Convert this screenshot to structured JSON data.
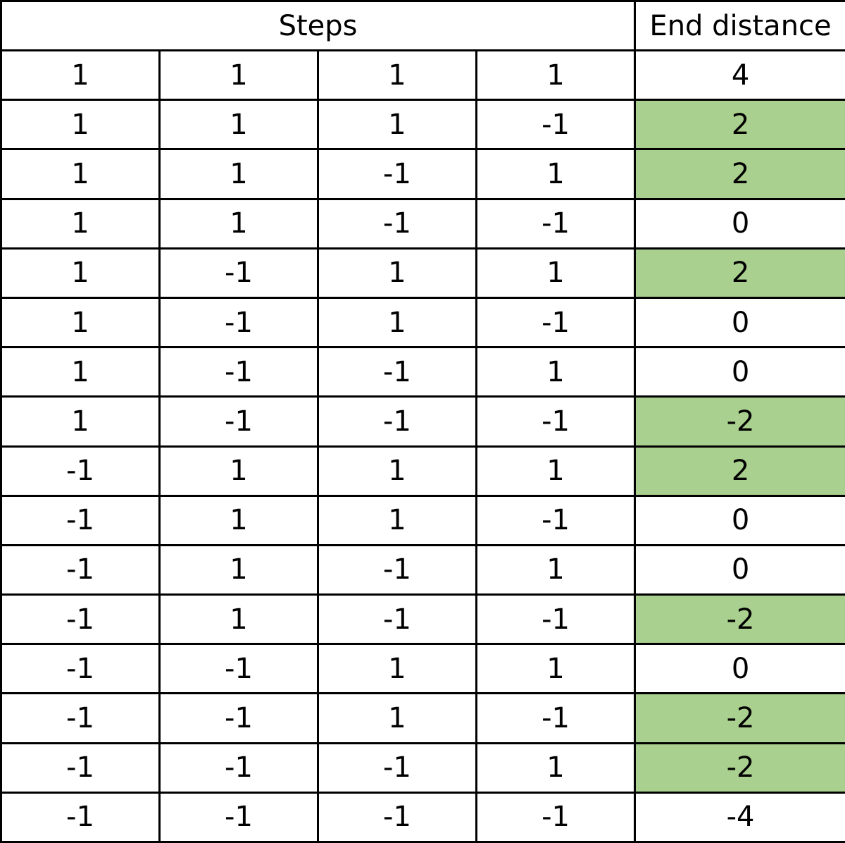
{
  "table": {
    "headers": {
      "steps": "Steps",
      "end_distance": "End distance"
    },
    "highlight_color": "#a9d08e",
    "rows": [
      {
        "steps": [
          "1",
          "1",
          "1",
          "1"
        ],
        "end": "4",
        "highlighted": false
      },
      {
        "steps": [
          "1",
          "1",
          "1",
          "-1"
        ],
        "end": "2",
        "highlighted": true
      },
      {
        "steps": [
          "1",
          "1",
          "-1",
          "1"
        ],
        "end": "2",
        "highlighted": true
      },
      {
        "steps": [
          "1",
          "1",
          "-1",
          "-1"
        ],
        "end": "0",
        "highlighted": false
      },
      {
        "steps": [
          "1",
          "-1",
          "1",
          "1"
        ],
        "end": "2",
        "highlighted": true
      },
      {
        "steps": [
          "1",
          "-1",
          "1",
          "-1"
        ],
        "end": "0",
        "highlighted": false
      },
      {
        "steps": [
          "1",
          "-1",
          "-1",
          "1"
        ],
        "end": "0",
        "highlighted": false
      },
      {
        "steps": [
          "1",
          "-1",
          "-1",
          "-1"
        ],
        "end": "-2",
        "highlighted": true
      },
      {
        "steps": [
          "-1",
          "1",
          "1",
          "1"
        ],
        "end": "2",
        "highlighted": true
      },
      {
        "steps": [
          "-1",
          "1",
          "1",
          "-1"
        ],
        "end": "0",
        "highlighted": false
      },
      {
        "steps": [
          "-1",
          "1",
          "-1",
          "1"
        ],
        "end": "0",
        "highlighted": false
      },
      {
        "steps": [
          "-1",
          "1",
          "-1",
          "-1"
        ],
        "end": "-2",
        "highlighted": true
      },
      {
        "steps": [
          "-1",
          "-1",
          "1",
          "1"
        ],
        "end": "0",
        "highlighted": false
      },
      {
        "steps": [
          "-1",
          "-1",
          "1",
          "-1"
        ],
        "end": "-2",
        "highlighted": true
      },
      {
        "steps": [
          "-1",
          "-1",
          "-1",
          "1"
        ],
        "end": "-2",
        "highlighted": true
      },
      {
        "steps": [
          "-1",
          "-1",
          "-1",
          "-1"
        ],
        "end": "-4",
        "highlighted": false
      }
    ]
  }
}
